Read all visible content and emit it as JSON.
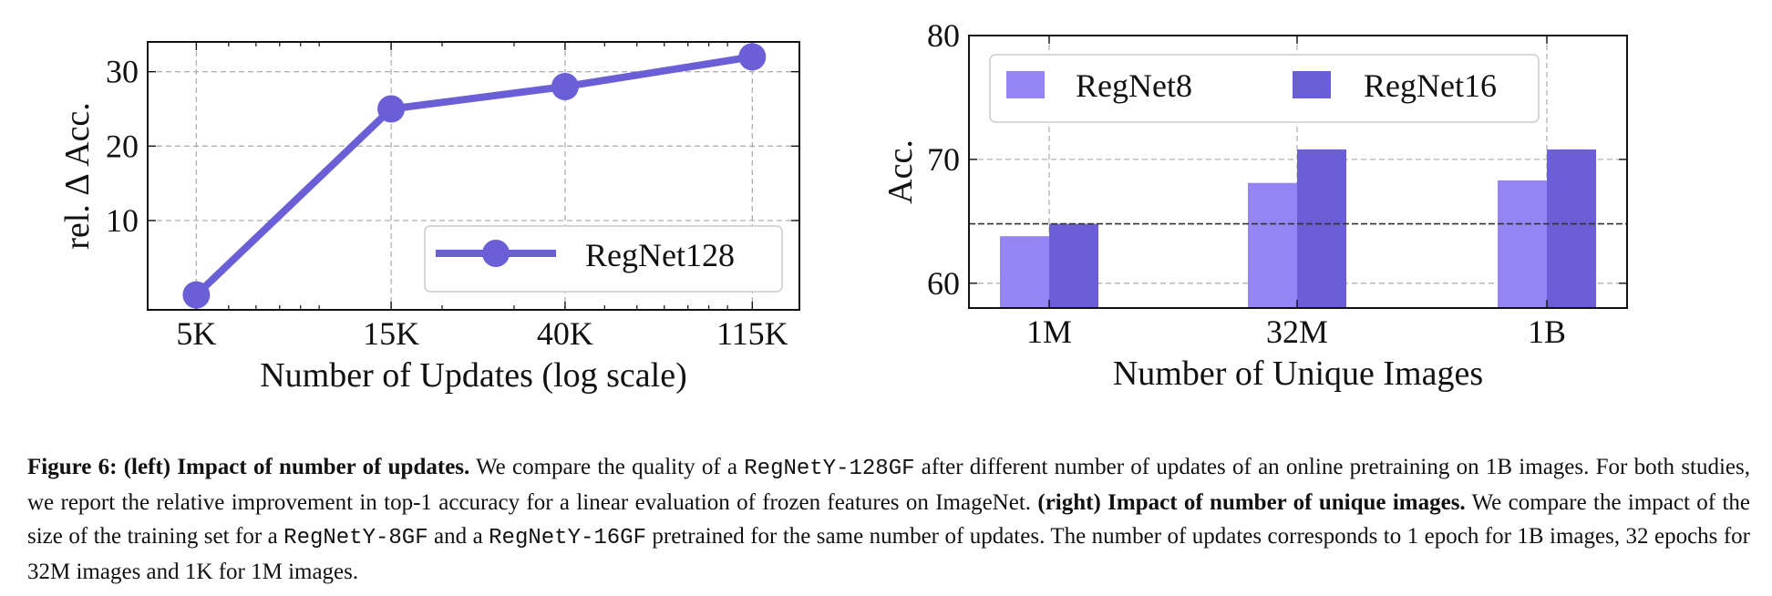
{
  "colors": {
    "regnet128": "#6a5fd6",
    "regnet8": "#9585f4",
    "regnet16": "#6a5fd6",
    "grid": "#b0b0b0",
    "baseline": "#333333"
  },
  "chart_data": [
    {
      "type": "line",
      "xlabel": "Number of Updates (log scale)",
      "ylabel": "rel. Δ Acc.",
      "x_scale": "log",
      "categories": [
        "5K",
        "15K",
        "40K",
        "115K"
      ],
      "x": [
        5000,
        15000,
        40000,
        115000
      ],
      "yticks": [
        "10",
        "20",
        "30"
      ],
      "ylim": [
        -2,
        34
      ],
      "grid": true,
      "legend_position": "lower-right",
      "series": [
        {
          "name": "RegNet128",
          "values": [
            0,
            25,
            28,
            32
          ]
        }
      ]
    },
    {
      "type": "bar",
      "xlabel": "Number of Unique Images",
      "ylabel": "Acc.",
      "categories": [
        "1M",
        "32M",
        "1B"
      ],
      "yticks": [
        "60",
        "70",
        "80"
      ],
      "ylim": [
        58,
        80
      ],
      "grid": true,
      "legend_position": "top",
      "baseline": 64.8,
      "series": [
        {
          "name": "RegNet8",
          "values": [
            63.8,
            68.1,
            68.3
          ]
        },
        {
          "name": "RegNet16",
          "values": [
            64.8,
            70.8,
            70.8
          ]
        }
      ]
    }
  ],
  "caption": {
    "fig_label": "Figure 6:",
    "left_tag": "(left) Impact of number of updates.",
    "text1": " We compare the quality of a ",
    "model128": "RegNetY-128GF",
    "text2": " after different number of updates of an online pretraining on 1B images. For both studies, we report the relative improvement in top-1 accuracy for a linear evaluation of frozen features on ImageNet. ",
    "right_tag": "(right) Impact of number of unique images.",
    "text3": " We compare the impact of the size of the training set for a ",
    "model8": "RegNetY-8GF",
    "text4": " and a ",
    "model16": "RegNetY-16GF",
    "text5": " pretrained for the same number of updates. The number of updates corresponds to 1 epoch for 1B images, 32 epochs for 32M images and 1K for 1M images."
  }
}
